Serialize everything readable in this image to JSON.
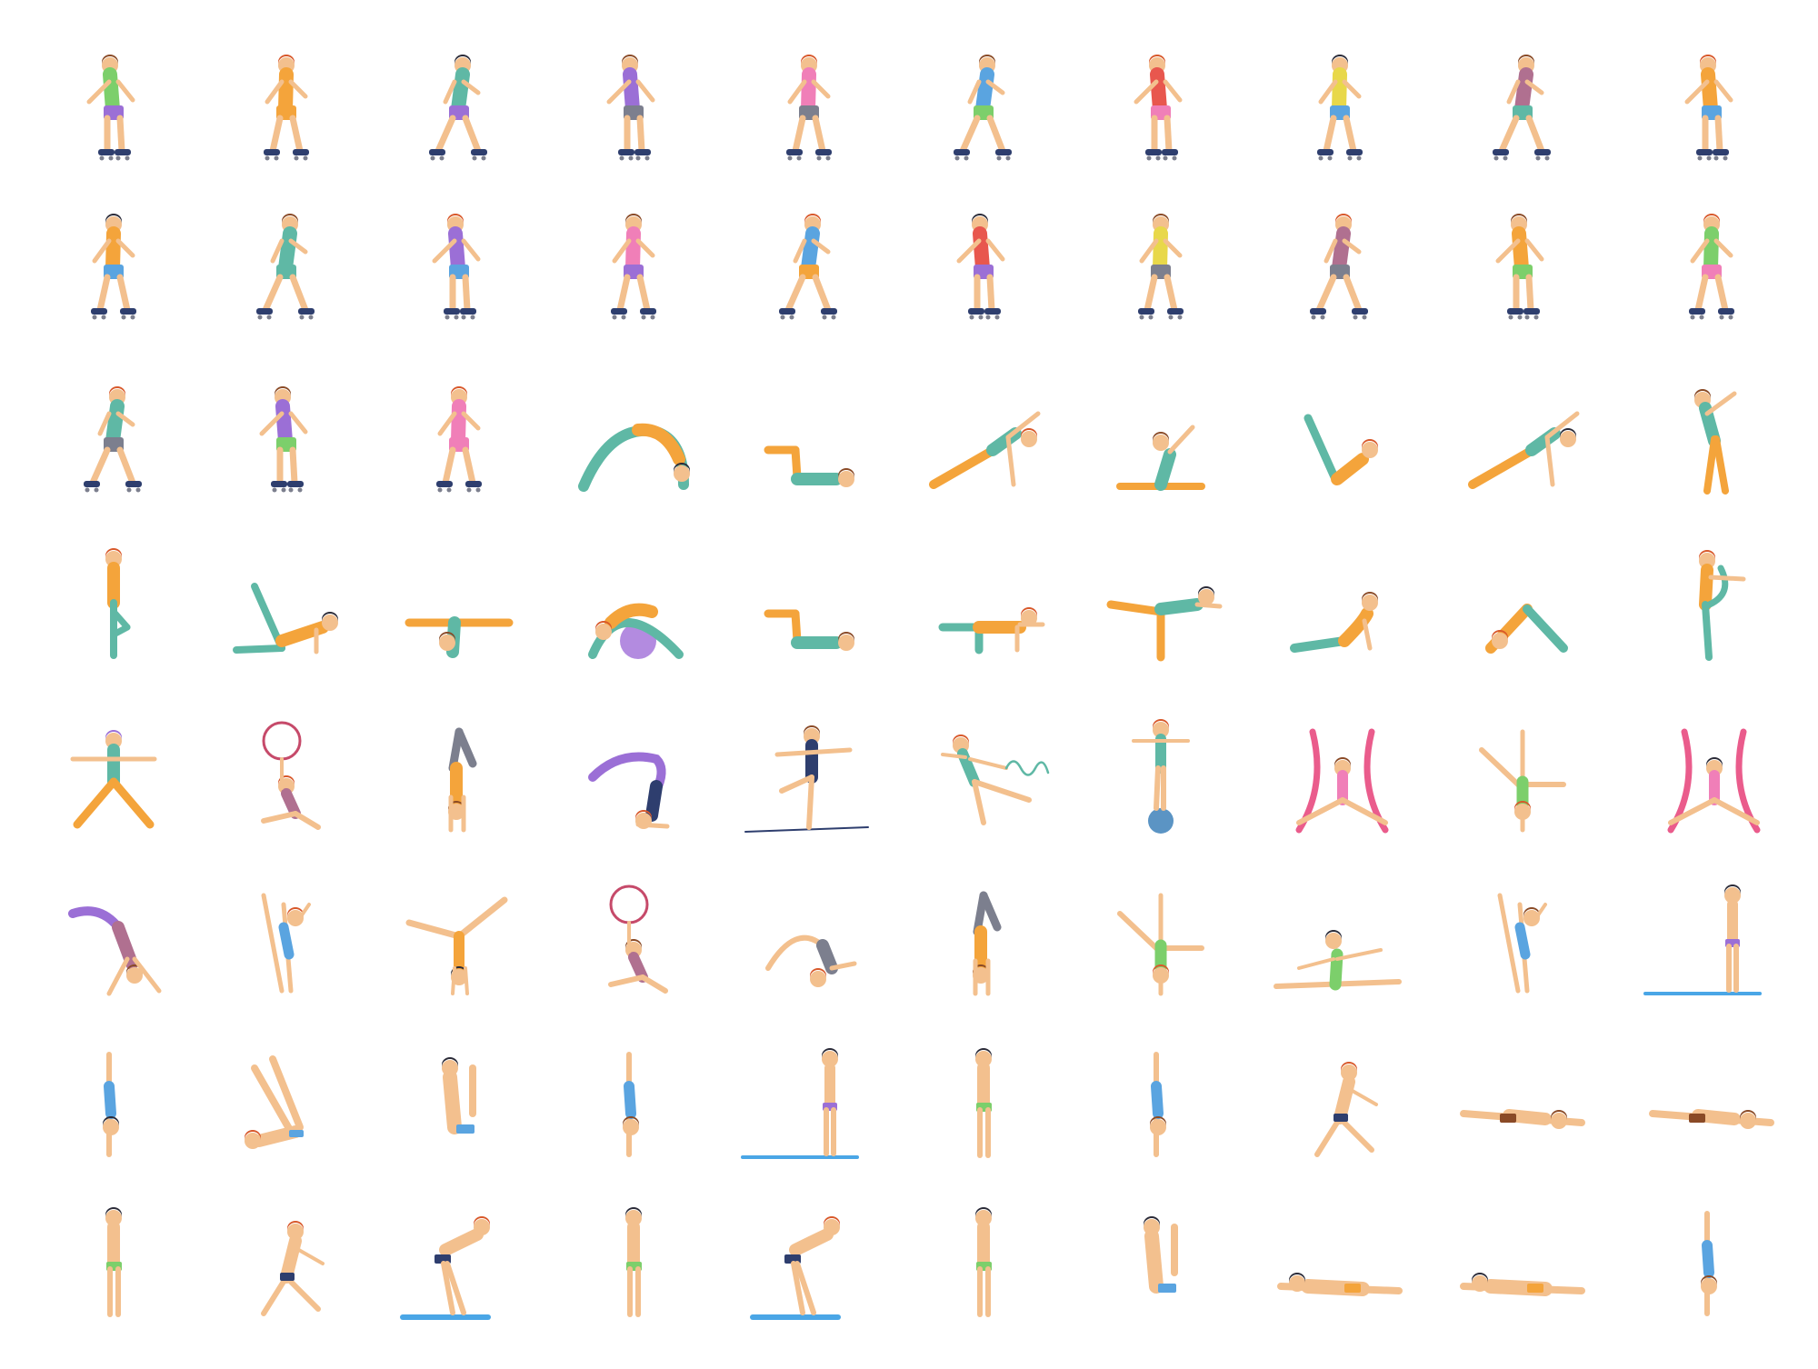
{
  "sheet": {
    "title": "",
    "rows": 8,
    "columns": 10
  },
  "palette": {
    "skin": "#f3c08e",
    "skin_dark": "#e9ab72",
    "hair_brown": "#8a4a26",
    "hair_red": "#d8582a",
    "hair_dark": "#2b2b38",
    "teal": "#5fb8a5",
    "orange": "#f4a43b",
    "purple": "#9b6fd6",
    "pink": "#f07fb8",
    "green": "#7ccf6b",
    "blue": "#5aa4e0",
    "yellow": "#e8d84a",
    "red": "#e8574e",
    "grey": "#7c7f8e",
    "mauve": "#b07090",
    "navy": "#2e3e6e",
    "mat_blue": "#4aa6e6",
    "ball_blue": "#5b94c4",
    "ball_purple": "#b38be0",
    "ribbon_pink": "#ea5c8c",
    "hoop_red": "#c64a6a"
  },
  "rows": [
    {
      "name": "roller-skaters-a",
      "icons": [
        "roller-skater-icon",
        "roller-skater-icon",
        "roller-skater-icon",
        "roller-skater-icon",
        "roller-skater-icon",
        "roller-skater-icon",
        "roller-skater-icon",
        "roller-skater-icon",
        "roller-skater-icon",
        "roller-skater-icon"
      ]
    },
    {
      "name": "roller-skaters-b",
      "icons": [
        "roller-skater-icon",
        "roller-skater-icon",
        "roller-skater-icon",
        "roller-skater-icon",
        "roller-skater-icon",
        "roller-skater-icon",
        "roller-skater-icon",
        "roller-skater-icon",
        "roller-skater-icon",
        "roller-skater-icon"
      ]
    },
    {
      "name": "skaters-and-yoga",
      "icons": [
        "roller-skater-icon",
        "roller-skater-icon",
        "roller-skater-icon",
        "yoga-bridge-pose-icon",
        "yoga-floor-pose-icon",
        "yoga-side-plank-icon",
        "yoga-seated-stretch-icon",
        "yoga-boat-pose-icon",
        "yoga-side-plank-icon",
        "yoga-standing-stretch-icon"
      ]
    },
    {
      "name": "yoga",
      "icons": [
        "yoga-tree-pose-icon",
        "yoga-plank-icon",
        "yoga-leg-stretch-icon",
        "fitball-stretch-icon",
        "yoga-floor-pose-icon",
        "yoga-table-pose-icon",
        "yoga-warrior-three-icon",
        "yoga-cobra-pose-icon",
        "yoga-downward-dog-icon",
        "yoga-dancer-pose-icon"
      ]
    },
    {
      "name": "gymnastics-a",
      "icons": [
        "yoga-warrior-two-icon",
        "gymnast-hoop-icon",
        "handstand-icon",
        "scorpion-pose-icon",
        "tightrope-walker-icon",
        "ribbon-gymnast-icon",
        "ball-balance-icon",
        "aerial-silks-icon",
        "cartwheel-icon",
        "aerial-silks-icon"
      ]
    },
    {
      "name": "gymnastics-b",
      "icons": [
        "back-flip-icon",
        "gymnast-leg-raise-icon",
        "handstand-split-icon",
        "gymnast-hoop-icon",
        "back-bend-icon",
        "handstand-icon",
        "cartwheel-icon",
        "floor-split-icon",
        "gymnast-leg-raise-icon",
        "diver-on-board-icon"
      ]
    },
    {
      "name": "diving-a",
      "icons": [
        "diver-dive-icon",
        "diver-pike-icon",
        "diver-tuck-icon",
        "diver-dive-icon",
        "diver-on-board-icon",
        "diver-standing-icon",
        "diver-dive-icon",
        "diver-jump-icon",
        "swimmer-icon",
        "swimmer-icon"
      ]
    },
    {
      "name": "diving-b",
      "icons": [
        "diver-standing-icon",
        "diver-jump-icon",
        "diver-ready-icon",
        "diver-standing-icon",
        "diver-ready-icon",
        "diver-standing-icon",
        "diver-tuck-icon",
        "swimmer-backstroke-icon",
        "swimmer-backstroke-icon",
        "diver-dive-icon"
      ]
    }
  ]
}
